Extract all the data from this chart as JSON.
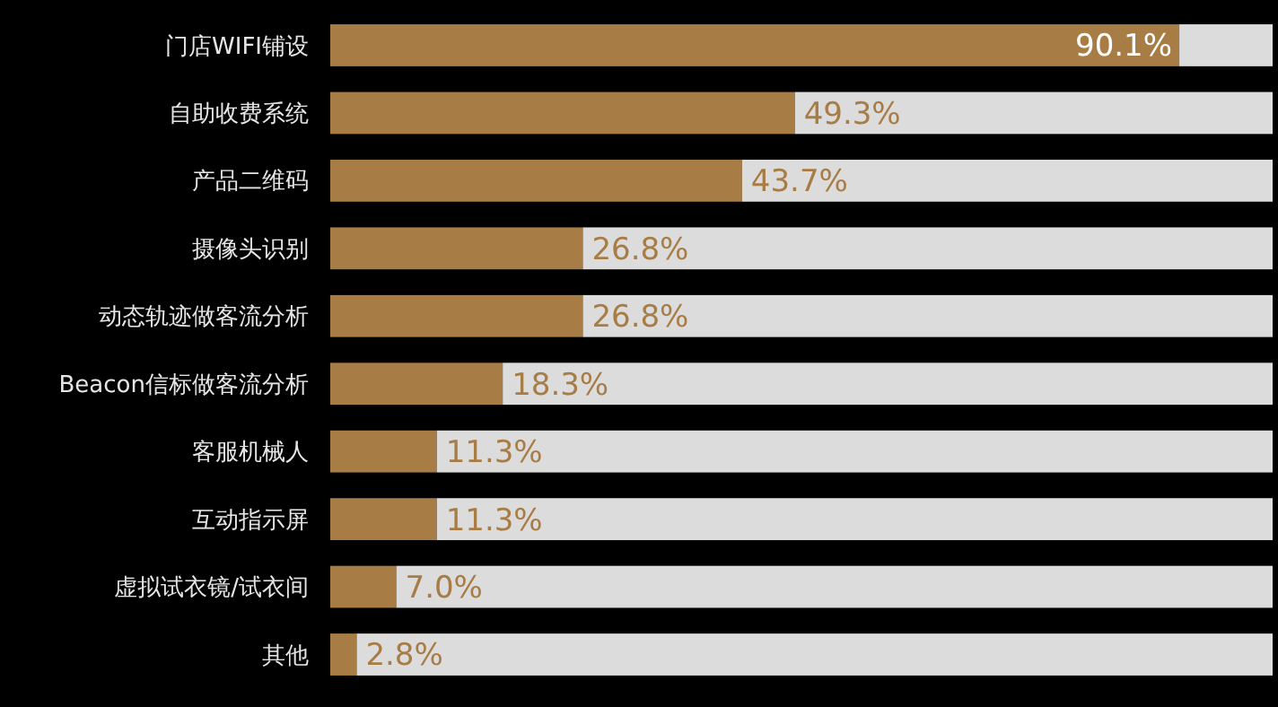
{
  "chart_data": {
    "type": "bar",
    "orientation": "horizontal",
    "stacked": true,
    "tick_labels": "y",
    "xlim": [
      0,
      100
    ],
    "categories": [
      "门店WIFI铺设",
      "自助收费系统",
      "产品二维码",
      "摄像头识别",
      "动态轨迹做客流分析",
      "Beacon信标做客流分析",
      "客服机械人",
      "互动指示屏",
      "虚拟试衣镜/试衣间",
      "其他"
    ],
    "series": [
      {
        "color": "#a87c45",
        "values": [
          90.1,
          49.3,
          43.7,
          26.8,
          26.8,
          18.3,
          11.3,
          11.3,
          7.0,
          2.8
        ],
        "value_labels": [
          "90.1%",
          "49.3%",
          "43.7%",
          "26.8%",
          "26.8%",
          "18.3%",
          "11.3%",
          "11.3%",
          "7.0%",
          "2.8%"
        ]
      },
      {
        "color": "#dcdcdc",
        "values": [
          9.9,
          50.7,
          56.3,
          73.2,
          73.2,
          81.7,
          88.7,
          88.7,
          93.0,
          97.2
        ]
      }
    ]
  }
}
